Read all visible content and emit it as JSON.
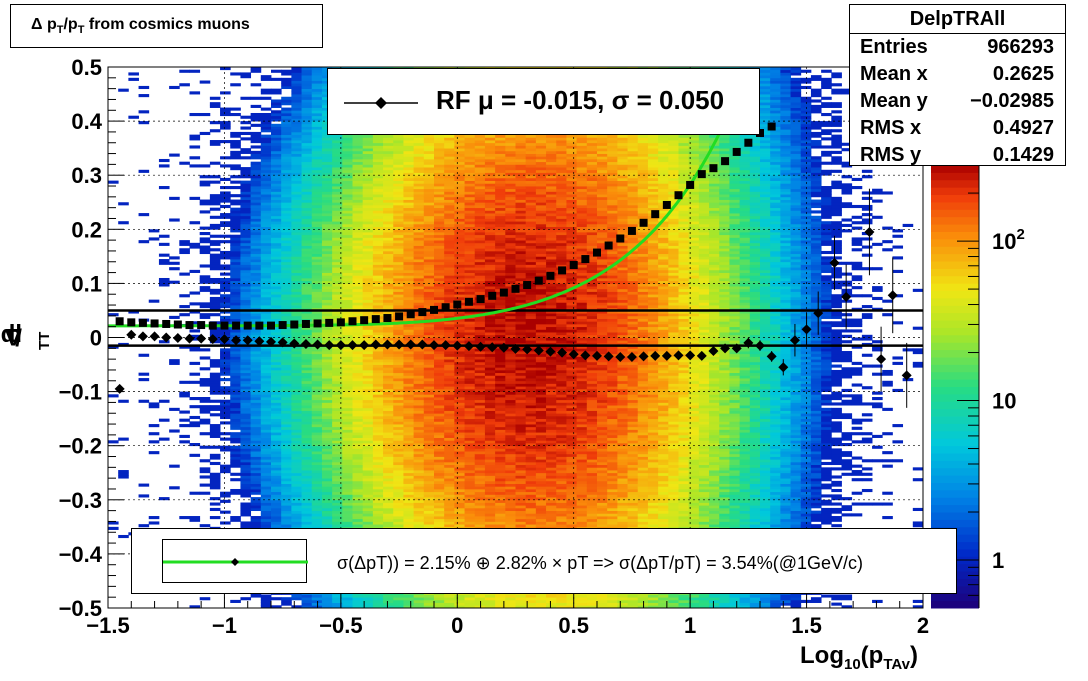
{
  "title": "Δ p_T/p_T from cosmics muons",
  "title_parts": {
    "delta": "Δ",
    "p1": "p",
    "sub1": "T",
    "slash": "/p",
    "sub2": "T",
    "rest": " from cosmics muons"
  },
  "stats": {
    "name": "DelpTRAll",
    "rows": [
      {
        "key": "Entries",
        "value": "966293"
      },
      {
        "key": "Mean x",
        "value": "0.2625"
      },
      {
        "key": "Mean y",
        "value": "−0.02985"
      },
      {
        "key": "RMS x",
        "value": "0.4927"
      },
      {
        "key": "RMS y",
        "value": "0.1429"
      }
    ]
  },
  "legend_top": {
    "label": "RF μ = -0.015, σ =   0.050",
    "marker_color": "#000000"
  },
  "legend_bottom": {
    "label": "σ(ΔpT)) =  2.15% ⊕  2.82% × pT => σ(ΔpT/pT) =  3.54%(@1GeV/c)",
    "line_color": "#22dd22"
  },
  "axis_labels": {
    "y": {
      "delta": "Δ",
      "p1": "p",
      "sub1": "T",
      "slash": "/p",
      "sub2": "T"
    },
    "x": {
      "main": "Log",
      "sub": "10",
      "open": "(p",
      "sub2": "TAv",
      "close": ")"
    }
  },
  "palette": {
    "frame": "#000000",
    "fit_curve": "#22dd22",
    "grid": "#000000"
  },
  "chart_data": {
    "type": "heatmap",
    "title": "Δ p_T/p_T from cosmics muons",
    "xlabel": "Log10(pTAv)",
    "ylabel": "Δ pT/pT",
    "xlim": [
      -1.5,
      2.0
    ],
    "ylim": [
      -0.5,
      0.5
    ],
    "x_ticks": [
      "−1.5",
      "−1",
      "−0.5",
      "0",
      "0.5",
      "1",
      "1.5",
      "2"
    ],
    "x_tick_values": [
      -1.5,
      -1,
      -0.5,
      0,
      0.5,
      1,
      1.5,
      2
    ],
    "y_ticks": [
      "0.5",
      "0.4",
      "0.3",
      "0.2",
      "0.1",
      "0",
      "−0.1",
      "−0.2",
      "−0.3",
      "−0.4",
      "−0.5"
    ],
    "y_tick_values": [
      0.5,
      0.4,
      0.3,
      0.2,
      0.1,
      0,
      -0.1,
      -0.2,
      -0.3,
      -0.4,
      -0.5
    ],
    "z_scale": "log",
    "z_range": [
      0.5,
      300
    ],
    "z_ticks": [
      {
        "label": "1",
        "value": 1
      },
      {
        "label": "10",
        "value": 10
      },
      {
        "label": "10",
        "sup": "2",
        "value": 100
      }
    ],
    "grid": true,
    "density_model": {
      "peak_x": 0.3,
      "spread_x": 0.55,
      "width_at_low_x": 0.28,
      "width_slope": 0.05
    },
    "mean_line": 0.05,
    "offset_line": -0.015,
    "fit_curve": {
      "name": "σ(ΔpT)) =  2.15% ⊕  2.82% × pT",
      "a": 0.0215,
      "b": 0.0282
    },
    "sigma_points": [
      [
        -1.45,
        0.03
      ],
      [
        -1.4,
        0.028
      ],
      [
        -1.35,
        0.027
      ],
      [
        -1.3,
        0.026
      ],
      [
        -1.25,
        0.025
      ],
      [
        -1.2,
        0.024
      ],
      [
        -1.15,
        0.023
      ],
      [
        -1.1,
        0.023
      ],
      [
        -1.05,
        0.022
      ],
      [
        -1.0,
        0.022
      ],
      [
        -0.95,
        0.022
      ],
      [
        -0.9,
        0.022
      ],
      [
        -0.85,
        0.022
      ],
      [
        -0.8,
        0.022
      ],
      [
        -0.75,
        0.023
      ],
      [
        -0.7,
        0.024
      ],
      [
        -0.65,
        0.025
      ],
      [
        -0.6,
        0.026
      ],
      [
        -0.55,
        0.027
      ],
      [
        -0.5,
        0.028
      ],
      [
        -0.45,
        0.03
      ],
      [
        -0.4,
        0.032
      ],
      [
        -0.35,
        0.034
      ],
      [
        -0.3,
        0.036
      ],
      [
        -0.25,
        0.039
      ],
      [
        -0.2,
        0.043
      ],
      [
        -0.15,
        0.047
      ],
      [
        -0.1,
        0.051
      ],
      [
        -0.05,
        0.056
      ],
      [
        0.0,
        0.061
      ],
      [
        0.05,
        0.066
      ],
      [
        0.1,
        0.071
      ],
      [
        0.15,
        0.077
      ],
      [
        0.2,
        0.083
      ],
      [
        0.25,
        0.09
      ],
      [
        0.3,
        0.097
      ],
      [
        0.35,
        0.105
      ],
      [
        0.4,
        0.114
      ],
      [
        0.45,
        0.124
      ],
      [
        0.5,
        0.134
      ],
      [
        0.55,
        0.145
      ],
      [
        0.6,
        0.157
      ],
      [
        0.65,
        0.17
      ],
      [
        0.7,
        0.183
      ],
      [
        0.75,
        0.197
      ],
      [
        0.8,
        0.212
      ],
      [
        0.85,
        0.228
      ],
      [
        0.9,
        0.245
      ],
      [
        0.95,
        0.263
      ],
      [
        1.0,
        0.282
      ],
      [
        1.05,
        0.302
      ],
      [
        1.1,
        0.313
      ],
      [
        1.15,
        0.326
      ],
      [
        1.2,
        0.343
      ],
      [
        1.25,
        0.36
      ],
      [
        1.3,
        0.378
      ],
      [
        1.35,
        0.39
      ]
    ],
    "mean_points": [
      [
        -1.45,
        -0.095,
        0
      ],
      [
        -1.4,
        0.005,
        0
      ],
      [
        -1.35,
        0.002,
        0
      ],
      [
        -1.3,
        0.002,
        0
      ],
      [
        -1.25,
        0.0,
        0
      ],
      [
        -1.2,
        -0.001,
        0
      ],
      [
        -1.15,
        -0.002,
        0
      ],
      [
        -1.1,
        -0.002,
        0
      ],
      [
        -1.05,
        -0.003,
        0
      ],
      [
        -1.0,
        -0.003,
        0
      ],
      [
        -0.95,
        -0.005,
        0
      ],
      [
        -0.9,
        -0.005,
        0
      ],
      [
        -0.85,
        -0.007,
        0
      ],
      [
        -0.8,
        -0.008,
        0
      ],
      [
        -0.75,
        -0.009,
        0
      ],
      [
        -0.7,
        -0.011,
        0
      ],
      [
        -0.65,
        -0.012,
        0
      ],
      [
        -0.6,
        -0.013,
        0
      ],
      [
        -0.55,
        -0.014,
        0
      ],
      [
        -0.5,
        -0.014,
        0
      ],
      [
        -0.45,
        -0.014,
        0
      ],
      [
        -0.4,
        -0.014,
        0
      ],
      [
        -0.35,
        -0.013,
        0
      ],
      [
        -0.3,
        -0.013,
        0
      ],
      [
        -0.25,
        -0.013,
        0
      ],
      [
        -0.2,
        -0.013,
        0
      ],
      [
        -0.15,
        -0.013,
        0
      ],
      [
        -0.1,
        -0.014,
        0
      ],
      [
        -0.05,
        -0.014,
        0
      ],
      [
        0.0,
        -0.015,
        0
      ],
      [
        0.05,
        -0.016,
        0
      ],
      [
        0.1,
        -0.017,
        0
      ],
      [
        0.15,
        -0.018,
        0
      ],
      [
        0.2,
        -0.019,
        0
      ],
      [
        0.25,
        -0.021,
        0
      ],
      [
        0.3,
        -0.022,
        0
      ],
      [
        0.35,
        -0.024,
        0
      ],
      [
        0.4,
        -0.026,
        0
      ],
      [
        0.45,
        -0.028,
        0
      ],
      [
        0.5,
        -0.031,
        0
      ],
      [
        0.55,
        -0.033,
        0
      ],
      [
        0.6,
        -0.034,
        0
      ],
      [
        0.65,
        -0.035,
        0
      ],
      [
        0.7,
        -0.036,
        0
      ],
      [
        0.75,
        -0.036,
        0
      ],
      [
        0.8,
        -0.035,
        0
      ],
      [
        0.85,
        -0.034,
        0
      ],
      [
        0.9,
        -0.034,
        0
      ],
      [
        0.95,
        -0.033,
        0
      ],
      [
        1.0,
        -0.033,
        0
      ],
      [
        1.05,
        -0.034,
        0
      ],
      [
        1.1,
        -0.025,
        0
      ],
      [
        1.15,
        -0.02,
        0
      ],
      [
        1.2,
        -0.02,
        0
      ],
      [
        1.25,
        -0.01,
        0.01
      ],
      [
        1.3,
        -0.015,
        0.01
      ],
      [
        1.35,
        -0.035,
        0.01
      ],
      [
        1.4,
        -0.055,
        0.015
      ],
      [
        1.45,
        -0.005,
        0.03
      ],
      [
        1.5,
        0.015,
        0.03
      ],
      [
        1.55,
        0.045,
        0.04
      ],
      [
        1.62,
        0.138,
        0.05
      ],
      [
        1.67,
        0.075,
        0.06
      ],
      [
        1.77,
        0.195,
        0.08
      ],
      [
        1.82,
        -0.04,
        0.06
      ],
      [
        1.87,
        0.078,
        0.07
      ],
      [
        1.93,
        -0.07,
        0.06
      ]
    ]
  }
}
